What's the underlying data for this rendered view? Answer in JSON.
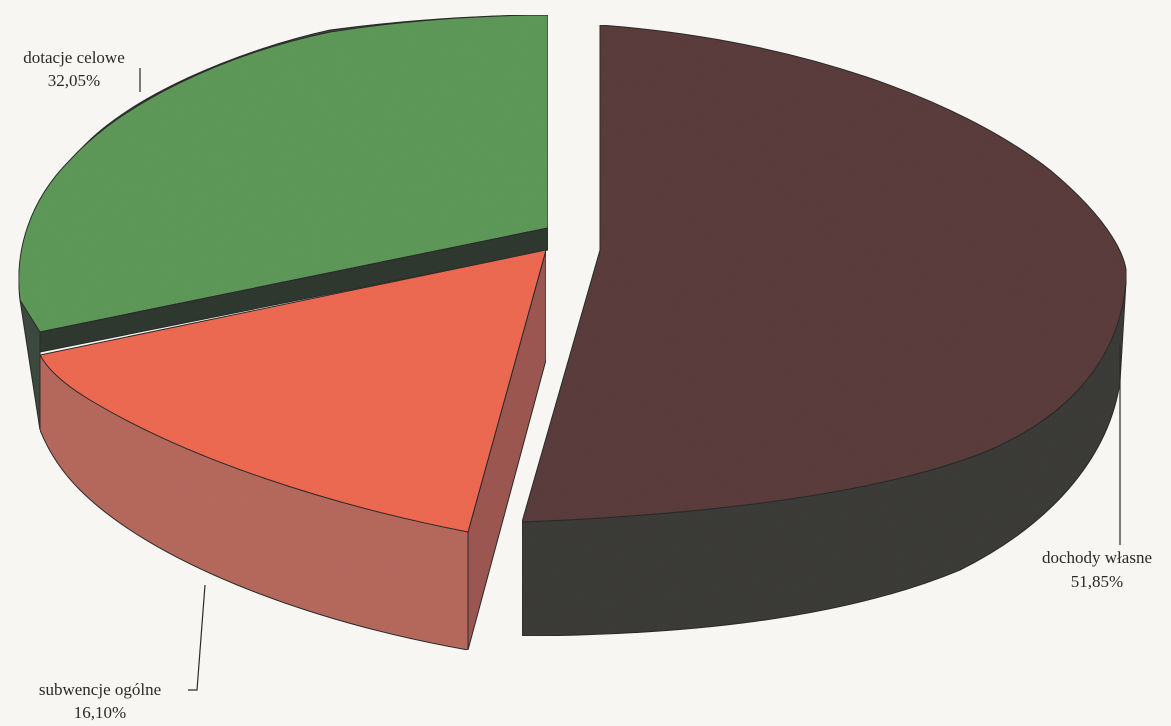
{
  "chart_data": {
    "type": "pie",
    "style": "3d-exploded",
    "slices": [
      {
        "label": "dochody własne",
        "value_label": "51,85%",
        "value": 51.85,
        "color_top": "#5b3d3c",
        "color_side": "#3c3b39",
        "exploded": true
      },
      {
        "label": "subwencje ogólne",
        "value_label": "16,10%",
        "value": 16.1,
        "color_top": "#f06a52",
        "color_side": "#b86a5e",
        "exploded": false
      },
      {
        "label": "dotacje celowe",
        "value_label": "32,05%",
        "value": 32.05,
        "color_top": "#5f9a5a",
        "color_side": "#3d4a3f",
        "exploded": false
      }
    ],
    "legend": "none",
    "data_labels": "outside-with-leader-lines"
  }
}
